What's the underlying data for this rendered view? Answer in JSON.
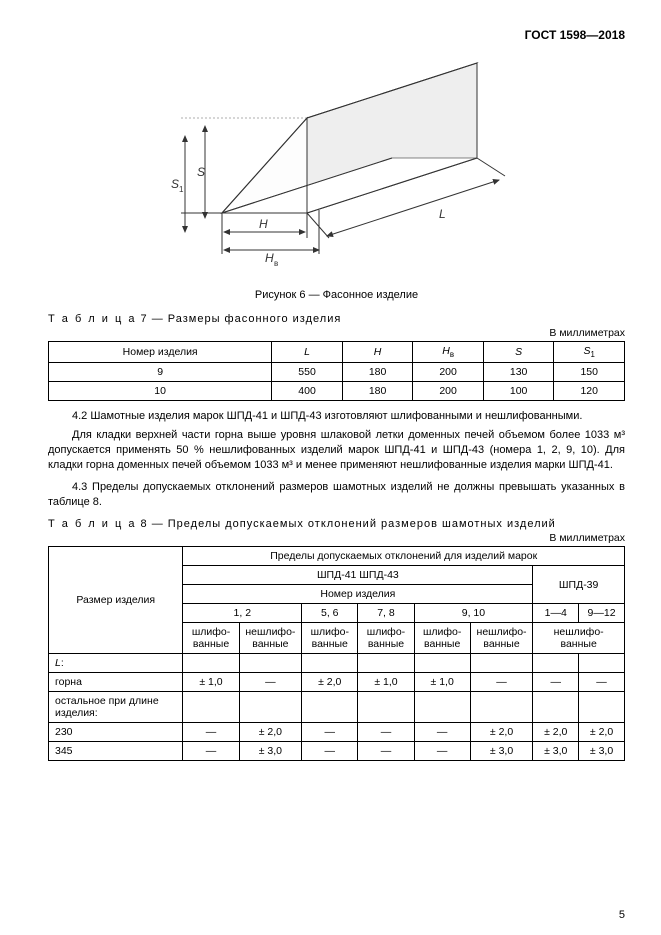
{
  "header": {
    "standard": "ГОСТ 1598—2018"
  },
  "figure6": {
    "caption": "Рисунок 6 — Фасонное изделие",
    "dims": {
      "L": "L",
      "H": "H",
      "Hv": "H",
      "Hv_sub": "в",
      "S": "S",
      "S1": "S",
      "S1_sub": "1"
    }
  },
  "table7": {
    "title_prefix": "Т а б л и ц а",
    "title_num": "7",
    "title_rest": " — Размеры фасонного изделия",
    "units": "В миллиметрах",
    "headers": [
      "Номер изделия",
      "L",
      "H",
      "H",
      "S",
      "S"
    ],
    "header_subs": [
      "",
      "",
      "",
      "в",
      "",
      "1"
    ],
    "rows": [
      [
        "9",
        "550",
        "180",
        "200",
        "130",
        "150"
      ],
      [
        "10",
        "400",
        "180",
        "200",
        "100",
        "120"
      ]
    ]
  },
  "para42": "4.2 Шамотные изделия марок ШПД-41 и ШПД-43 изготовляют шлифованными и нешлифованными.",
  "para42b": "Для кладки верхней части горна выше уровня шлаковой летки доменных печей объемом более 1033 м³ допускается применять 50 % нешлифованных изделий марок ШПД-41 и ШПД-43 (номера 1, 2, 9, 10). Для кладки горна доменных печей объемом 1033 м³ и менее применяют нешлифованные изделия марки ШПД-41.",
  "para43": "4.3 Пределы допускаемых отклонений размеров шамотных изделий не должны превышать указанных в таблице 8.",
  "table8": {
    "title_prefix": "Т а б л и ц а",
    "title_num": "8",
    "title_rest": " — Пределы допускаемых отклонений размеров шамотных изделий",
    "units": "В миллиметрах",
    "h_size": "Размер изделия",
    "h_top": "Пределы допускаемых отклонений для изделий марок",
    "h_mark1": "ШПД-41  ШПД-43",
    "h_mark2": "ШПД-39",
    "h_num": "Номер изделия",
    "h_g12": "1, 2",
    "h_g56": "5, 6",
    "h_g78": "7, 8",
    "h_g910": "9, 10",
    "h_g14": "1—4",
    "h_g912": "9—12",
    "h_shlif": "шлифо-\nванные",
    "h_neshlif": "нешлифо-\nванные",
    "rows": [
      {
        "label": "L:",
        "vals": [
          "",
          "",
          "",
          "",
          "",
          "",
          "",
          ""
        ]
      },
      {
        "label": "горна",
        "vals": [
          "± 1,0",
          "—",
          "± 2,0",
          "± 1,0",
          "± 1,0",
          "—",
          "—",
          "—"
        ]
      },
      {
        "label": "остальное при длине изделия:",
        "vals": [
          "",
          "",
          "",
          "",
          "",
          "",
          "",
          ""
        ]
      },
      {
        "label": "230",
        "vals": [
          "—",
          "± 2,0",
          "—",
          "—",
          "—",
          "± 2,0",
          "± 2,0",
          "± 2,0"
        ]
      },
      {
        "label": "345",
        "vals": [
          "—",
          "± 3,0",
          "—",
          "—",
          "—",
          "± 3,0",
          "± 3,0",
          "± 3,0"
        ]
      }
    ]
  },
  "pagenum": "5"
}
